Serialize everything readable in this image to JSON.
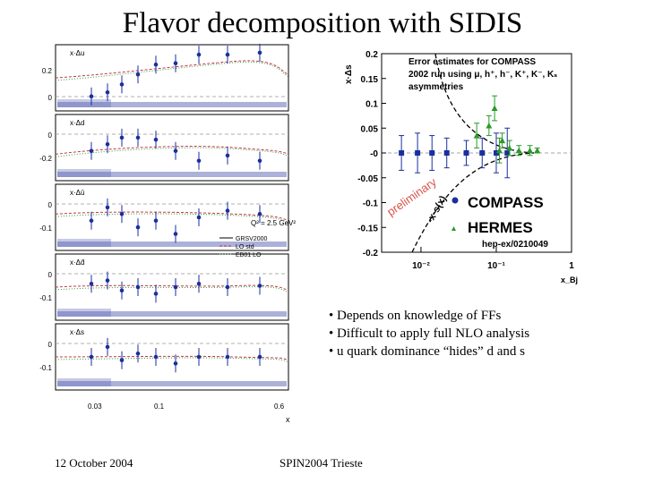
{
  "slide": {
    "title": "Flavor decomposition with SIDIS",
    "bullets": [
      "• Depends on knowledge of FFs",
      "• Difficult to apply full NLO analysis",
      "• u quark dominance “hides” d and s"
    ],
    "footer_date": "12 October 2004",
    "footer_conference": "SPIN2004 Trieste"
  },
  "left_figure": {
    "panels": [
      {
        "label": "x·Δu",
        "ticks": [
          "0.2",
          "0"
        ]
      },
      {
        "label": "x·Δd",
        "ticks": [
          "0",
          "-0.2"
        ]
      },
      {
        "label": "x·Δū",
        "ticks": [
          "0",
          "-0.1"
        ]
      },
      {
        "label": "x·Δd̄",
        "ticks": [
          "0",
          "-0.1"
        ]
      },
      {
        "label": "x·Δs",
        "ticks": [
          "0",
          "-0.1"
        ]
      }
    ],
    "q2_label": "Q² = 2.5 GeV²",
    "legend": [
      "GRSV2000",
      "LO std",
      "EB01 LO"
    ],
    "x_ticks": [
      "0.03",
      "0.1",
      "0.6"
    ],
    "xlabel": "x",
    "colors": {
      "points": "#1a2f9e",
      "band": "#5a64b4",
      "curve_red": "#c0394a",
      "curve_green": "#3c9a3c"
    }
  },
  "chart_data": {
    "type": "scatter",
    "title": "Error estimates for COMPASS 2002 run using μ, h⁺, h⁻, K⁺, K⁻, Ks asymmetries",
    "xlabel": "x_Bj",
    "ylabel": "x·Δs",
    "x_scale": "log",
    "xlim": [
      0.003,
      1
    ],
    "ylim": [
      -0.2,
      0.2
    ],
    "x_tick_labels": [
      "10⁻²",
      "10⁻¹",
      "1"
    ],
    "y_tick_labels": [
      "0.2",
      "0.15",
      "0.1",
      "0.05",
      "-0",
      "-0.05",
      "-0.1",
      "-0.15",
      "-0.2"
    ],
    "series": [
      {
        "name": "COMPASS",
        "color": "#1a2f9e",
        "marker": "circle",
        "x": [
          0.0055,
          0.009,
          0.014,
          0.022,
          0.04,
          0.065,
          0.1,
          0.14
        ],
        "y": [
          0,
          0,
          0,
          0,
          0,
          0,
          0,
          0
        ],
        "err": [
          0.035,
          0.04,
          0.035,
          0.03,
          0.025,
          0.03,
          0.04,
          0.05
        ]
      },
      {
        "name": "HERMES",
        "color": "#2a9a2a",
        "marker": "triangle",
        "x": [
          0.055,
          0.08,
          0.095,
          0.11,
          0.12,
          0.15,
          0.2,
          0.28,
          0.35
        ],
        "y": [
          0.035,
          0.055,
          0.09,
          0.005,
          0.025,
          0.01,
          0.005,
          0.005,
          0.005
        ],
        "err": [
          0.025,
          0.02,
          0.025,
          0.025,
          0.015,
          0.015,
          0.01,
          0.01,
          0.005
        ]
      }
    ],
    "annotations": [
      "preliminary",
      "-x·s(x)",
      "hep-ex/0210049"
    ]
  }
}
